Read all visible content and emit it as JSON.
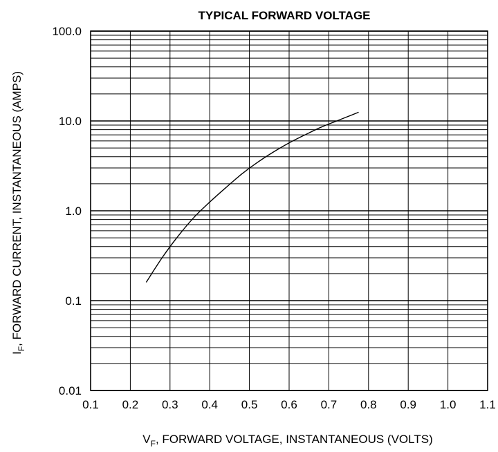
{
  "chart_data": {
    "type": "line",
    "title": "TYPICAL FORWARD VOLTAGE",
    "xlabel": {
      "prefix": "V",
      "subscript": "F",
      "text": ", FORWARD VOLTAGE, INSTANTANEOUS (VOLTS)"
    },
    "ylabel": {
      "prefix": "I",
      "subscript": "F",
      "text": ", FORWARD CURRENT, INSTANTANEOUS (AMPS)"
    },
    "xlim": [
      0.1,
      1.1
    ],
    "ylim": [
      0.01,
      100
    ],
    "yscale": "log",
    "grid": true,
    "x_ticks": [
      "0.1",
      "0.2",
      "0.3",
      "0.4",
      "0.5",
      "0.6",
      "0.7",
      "0.8",
      "0.9",
      "1.0",
      "1.1"
    ],
    "y_ticks": [
      {
        "value": 0.01,
        "label": "0.01"
      },
      {
        "value": 0.1,
        "label": "0.1"
      },
      {
        "value": 1,
        "label": "1.0"
      },
      {
        "value": 10,
        "label": "10.0"
      },
      {
        "value": 100,
        "label": "100.0"
      }
    ],
    "series": [
      {
        "x": [
          0.24,
          0.28,
          0.32,
          0.36,
          0.4,
          0.44,
          0.48,
          0.52,
          0.56,
          0.6,
          0.64,
          0.68,
          0.72,
          0.775
        ],
        "y": [
          0.16,
          0.3,
          0.52,
          0.84,
          1.25,
          1.8,
          2.55,
          3.45,
          4.5,
          5.7,
          7.0,
          8.5,
          10.0,
          12.5
        ]
      }
    ],
    "colors": {
      "line": "#000000",
      "grid": "#000000"
    }
  }
}
